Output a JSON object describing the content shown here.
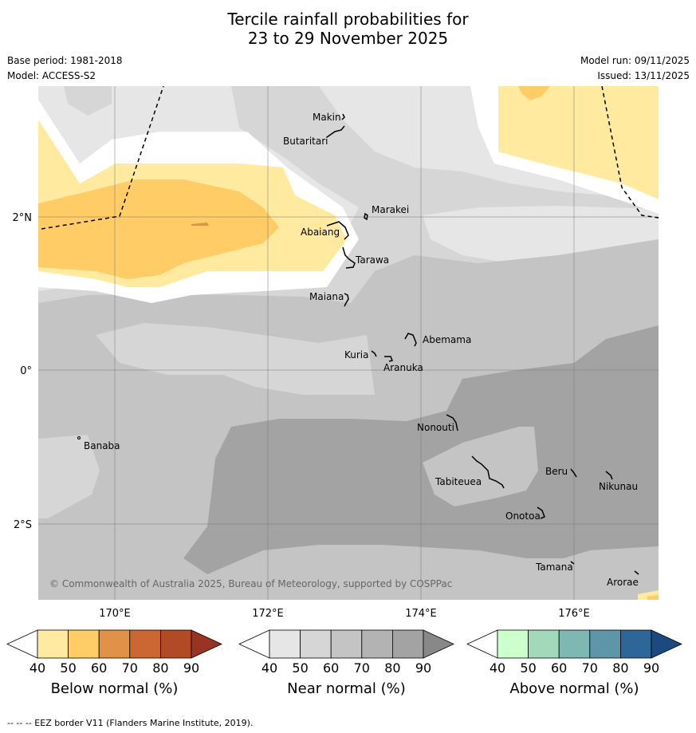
{
  "title_line1": "Tercile rainfall probabilities for",
  "title_line2": "23 to 29 November 2025",
  "meta": {
    "base_period": "Base period: 1981-2018",
    "model": "Model: ACCESS-S2",
    "model_run": "Model run: 09/11/2025",
    "issued": "Issued: 13/11/2025"
  },
  "axes": {
    "lat_labels": [
      "2°N",
      "0°",
      "2°S"
    ],
    "lon_labels": [
      "170°E",
      "172°E",
      "174°E",
      "176°E"
    ]
  },
  "places": [
    {
      "name": "Makin"
    },
    {
      "name": "Butaritari"
    },
    {
      "name": "Marakei"
    },
    {
      "name": "Abaiang"
    },
    {
      "name": "Tarawa"
    },
    {
      "name": "Maiana"
    },
    {
      "name": "Abemama"
    },
    {
      "name": "Kuria"
    },
    {
      "name": "Aranuka"
    },
    {
      "name": "Nonouti"
    },
    {
      "name": "Banaba"
    },
    {
      "name": "Beru"
    },
    {
      "name": "Tabiteuea"
    },
    {
      "name": "Nikunau"
    },
    {
      "name": "Onotoa"
    },
    {
      "name": "Tamana"
    },
    {
      "name": "Arorae"
    }
  ],
  "copyright": "© Commonwealth of Australia 2025, Bureau of Meteorology, supported by COSPPac",
  "colorbars": [
    {
      "title": "Below normal (%)",
      "ticks": [
        "40",
        "50",
        "60",
        "70",
        "80",
        "90"
      ],
      "colors": [
        "#ffffff",
        "#ffeaa0",
        "#ffcc66",
        "#e09248",
        "#cc6633",
        "#b34a26",
        "#993322"
      ]
    },
    {
      "title": "Near normal (%)",
      "ticks": [
        "40",
        "50",
        "60",
        "70",
        "80",
        "90"
      ],
      "colors": [
        "#ffffff",
        "#e6e6e6",
        "#d6d6d6",
        "#c4c4c4",
        "#b3b3b3",
        "#a3a3a3",
        "#888888"
      ]
    },
    {
      "title": "Above normal (%)",
      "ticks": [
        "40",
        "50",
        "60",
        "70",
        "80",
        "90"
      ],
      "colors": [
        "#ffffff",
        "#ccffcc",
        "#a3d9bb",
        "#7fb7b2",
        "#5f95a8",
        "#2e6699",
        "#1a4a80"
      ]
    }
  ],
  "footnote": "--  --  -- EEZ border V11 (Flanders Marine Institute, 2019).",
  "legend_colors": {
    "below_50_60": "#ffeaa0",
    "below_60_70": "#ffcc66",
    "below_70_80": "#e09248",
    "near_50_60": "#e6e6e6",
    "near_60_70": "#d6d6d6",
    "near_70_80": "#c4c4c4",
    "near_80_90": "#a3a3a3"
  }
}
